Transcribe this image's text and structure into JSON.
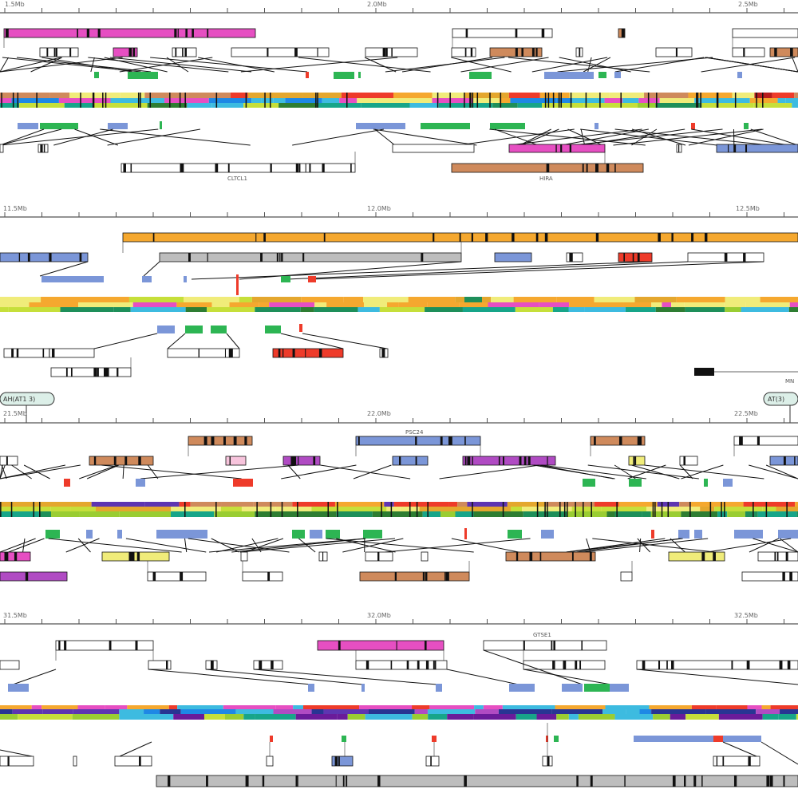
{
  "figure": {
    "panels": [
      {
        "id": "panel-1",
        "ticks": [
          "1.5Mb",
          "2.0Mb",
          "2.5Mb"
        ],
        "feature_labels": [
          "CLTCL1",
          "HIRA"
        ]
      },
      {
        "id": "panel-2",
        "ticks": [
          "11.5Mb",
          "12.0Mb",
          "12.5Mb"
        ],
        "feature_labels": [
          "MN"
        ]
      },
      {
        "id": "panel-3",
        "ticks": [
          "21.5Mb",
          "22.0Mb",
          "22.5Mb"
        ],
        "badges": [
          "AH(AT1 3)",
          "AT(3)"
        ],
        "feature_labels": [
          "PSC24"
        ]
      },
      {
        "id": "panel-4",
        "ticks": [
          "31.5Mb",
          "32.0Mb",
          "32.5Mb"
        ],
        "feature_labels": [
          "GTSE1"
        ]
      }
    ],
    "colors": {
      "pink": "#e64fc2",
      "orange": "#f5a82f",
      "salmon": "#cf8a5c",
      "blue": "#7b96d8",
      "green": "#2db553",
      "red": "#ee3b2a",
      "purple": "#b04bc3",
      "yellow": "#f0ec7a",
      "light_pink": "#f7c4dc",
      "gray": "#bdbdbd",
      "black": "#111111"
    }
  }
}
